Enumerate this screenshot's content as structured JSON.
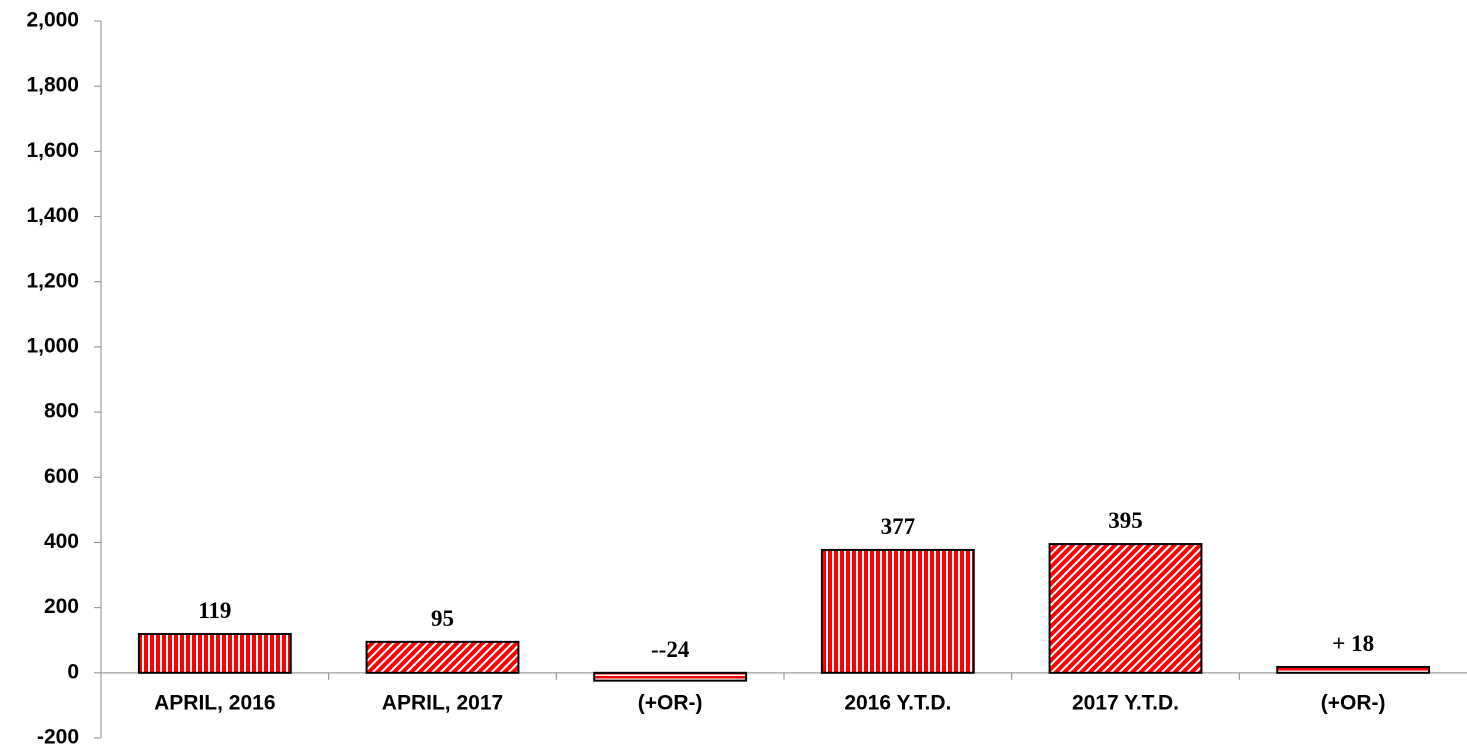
{
  "chart_data": {
    "type": "bar",
    "categories": [
      "APRIL, 2016",
      "APRIL, 2017",
      "(+OR-)",
      "2016 Y.T.D.",
      "2017 Y.T.D.",
      "(+OR-)"
    ],
    "values": [
      119,
      95,
      -24,
      377,
      395,
      18
    ],
    "value_labels": [
      "119",
      "95",
      "--24",
      "377",
      "395",
      "+ 18"
    ],
    "color": "#ff0000",
    "patterns": [
      "vertical",
      "diagonal",
      "horizontal",
      "vertical",
      "diagonal",
      "horizontal"
    ],
    "ylim": [
      -200,
      2000
    ],
    "yticks": [
      -200,
      0,
      200,
      400,
      600,
      800,
      {
        "value": 1000,
        "label": "1,000"
      },
      {
        "value": 1200,
        "label": "1,200"
      },
      {
        "value": 1400,
        "label": "1,400"
      },
      {
        "value": 1600,
        "label": "1,600"
      },
      {
        "value": 1800,
        "label": "1,800"
      },
      {
        "value": 2000,
        "label": "2,000"
      }
    ],
    "grid": false
  }
}
